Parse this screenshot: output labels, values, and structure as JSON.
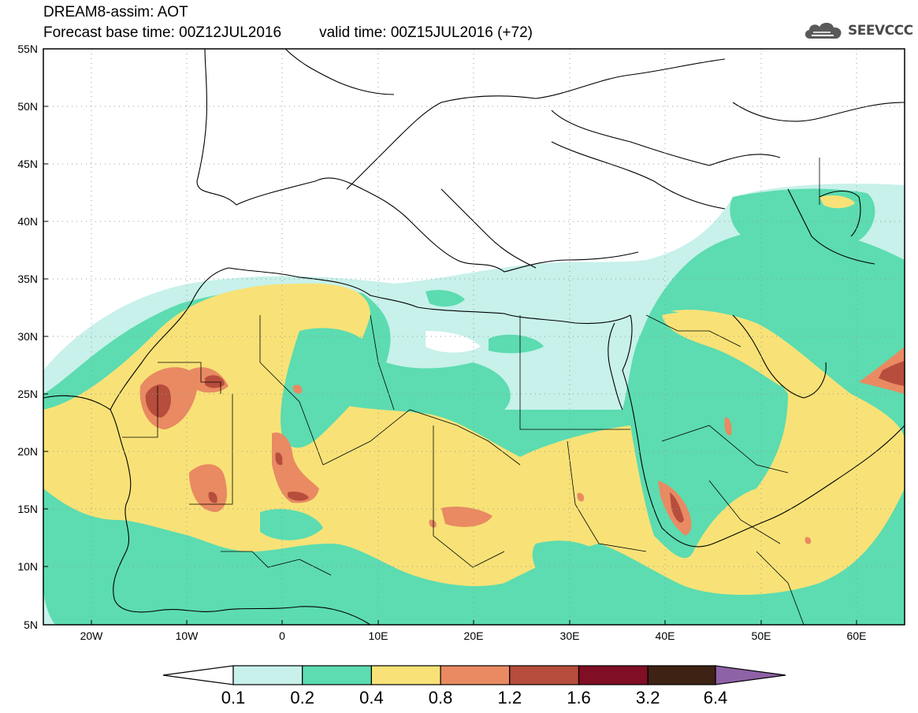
{
  "header": {
    "title": "DREAM8-assim: AOT",
    "base_label": "Forecast base time: 00Z12JUL2016",
    "valid_label": "valid time: 00Z15JUL2016 (+72)"
  },
  "logo": {
    "text": "SEEVCCC",
    "icon": "cloud-logo-icon"
  },
  "axes": {
    "lon_ticks": [
      "20W",
      "10W",
      "0",
      "10E",
      "20E",
      "30E",
      "40E",
      "50E",
      "60E"
    ],
    "lat_ticks": [
      "55N",
      "50N",
      "45N",
      "40N",
      "35N",
      "30N",
      "25N",
      "20N",
      "15N",
      "10N",
      "5N"
    ],
    "lon_range": [
      -25,
      65
    ],
    "lat_range": [
      5,
      55
    ]
  },
  "colorbar": {
    "levels": [
      "0.1",
      "0.2",
      "0.4",
      "0.8",
      "1.2",
      "1.6",
      "3.2",
      "6.4"
    ],
    "colors": [
      "#c7f1ea",
      "#5cdcb0",
      "#f8e277",
      "#e98a62",
      "#b74d3c",
      "#800e24",
      "#3e2213"
    ],
    "under_color": "#ffffff",
    "over_color": "#8e62a6"
  }
}
